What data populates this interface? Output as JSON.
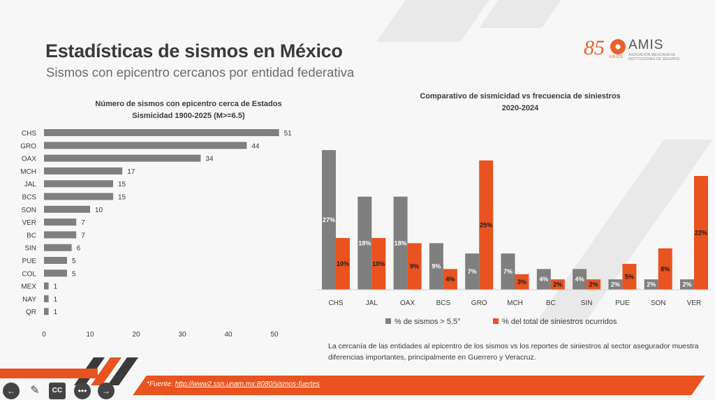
{
  "slide": {
    "title": "Estadísticas de sismos en México",
    "subtitle": "Sismos con epicentro cercanos por entidad federativa",
    "logo": {
      "number": "85",
      "anios": "AÑOS",
      "name": "AMIS",
      "tagline": "ASOCIACIÓN MEXICANA DE INSTITUCIONES DE SEGUROS"
    },
    "note": "La cercanía de las entidades al epicentro de los sismos vs los reportes de siniestros al sector asegurador muestra diferencias importantes, principalmente en Guerrero y Veracruz.",
    "source_prefix": "*Fuente: ",
    "source_link": "http://www2.ssn.unam.mx:8080/sismos-fuertes"
  },
  "controls": [
    "back-icon",
    "pen-icon",
    "cc-icon",
    "more-icon",
    "forward-icon"
  ],
  "colors": {
    "gray": "#7f7f7f",
    "orange": "#e8531f"
  },
  "chart_data": [
    {
      "type": "bar",
      "orientation": "horizontal",
      "title": "Número de sismos con epicentro cerca de Estados",
      "subtitle": "Sismicidad 1900-2025 (M>=6.5)",
      "categories": [
        "CHS",
        "GRO",
        "OAX",
        "MCH",
        "JAL",
        "BCS",
        "SON",
        "VER",
        "BC",
        "SIN",
        "PUE",
        "COL",
        "MEX",
        "NAY",
        "QR"
      ],
      "values": [
        51,
        44,
        34,
        17,
        15,
        15,
        10,
        7,
        7,
        6,
        5,
        5,
        1,
        1,
        1
      ],
      "xticks": [
        "0",
        "10",
        "20",
        "30",
        "40",
        "50"
      ],
      "xlim": [
        0,
        50
      ],
      "grid": false
    },
    {
      "type": "bar",
      "title": "Comparativo de sismicidad vs frecuencia de siniestros",
      "subtitle": "2020-2024",
      "categories": [
        "CHS",
        "JAL",
        "OAX",
        "BCS",
        "GRO",
        "MCH",
        "BC",
        "SIN",
        "PUE",
        "SON",
        "VER"
      ],
      "series": [
        {
          "name": "% de sismos > 5.5°",
          "values": [
            27,
            18,
            18,
            9,
            7,
            7,
            4,
            4,
            2,
            2,
            2
          ],
          "labels": [
            "27%",
            "18%",
            "18%",
            "9%",
            "7%",
            "7%",
            "4%",
            "4%",
            "2%",
            "2%",
            "2%"
          ]
        },
        {
          "name": "% del total de siniestros ocurridos",
          "values": [
            10,
            10,
            9,
            4,
            25,
            3,
            2,
            2,
            5,
            8,
            22
          ],
          "labels": [
            "10%",
            "10%",
            "9%",
            "4%",
            "25%",
            "3%",
            "2%",
            "2%",
            "5%",
            "8%",
            "22%"
          ]
        }
      ],
      "legend": "bottom",
      "grid": false
    }
  ]
}
